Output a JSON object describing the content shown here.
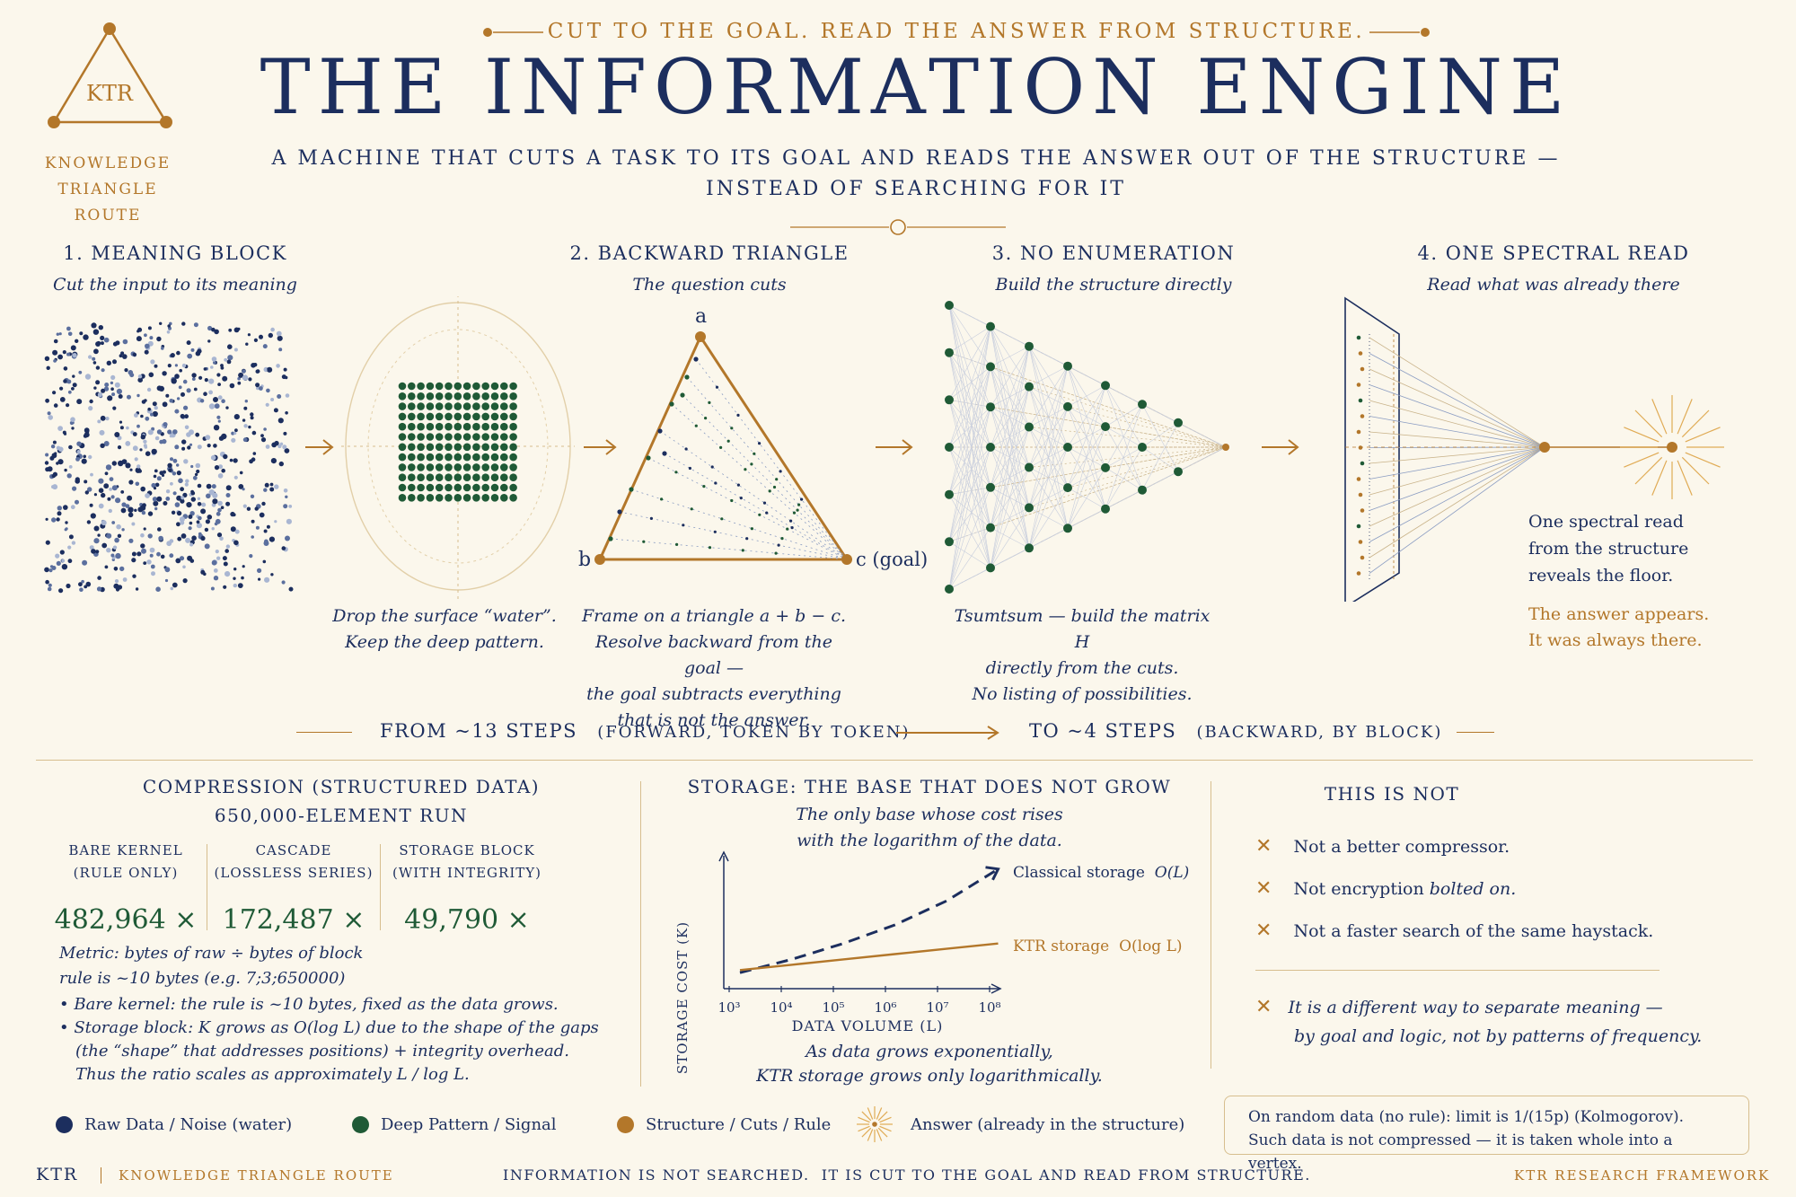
{
  "logo": {
    "text": "KTR",
    "lines": [
      "KNOWLEDGE",
      "TRIANGLE",
      "ROUTE"
    ]
  },
  "header": {
    "tagline": "CUT TO THE GOAL. READ THE ANSWER FROM STRUCTURE.",
    "title": "THE INFORMATION ENGINE",
    "subtitle_line1": "A MACHINE THAT CUTS A TASK TO ITS GOAL AND READS THE ANSWER OUT OF THE STRUCTURE —",
    "subtitle_line2": "INSTEAD OF SEARCHING FOR IT"
  },
  "steps": [
    {
      "title": "1. MEANING BLOCK",
      "subtitle": "Cut the input to its meaning",
      "caption": [
        "Drop the surface “water”.",
        "Keep the deep pattern."
      ]
    },
    {
      "title": "2. BACKWARD TRIANGLE",
      "subtitle": "The question cuts",
      "caption": [
        "Frame on a triangle a + b − c.",
        "Resolve backward from the goal —",
        "the goal subtracts everything",
        "that is not the answer."
      ],
      "labels": {
        "a": "a",
        "b": "b",
        "c": "c (goal)"
      }
    },
    {
      "title": "3. NO ENUMERATION",
      "subtitle": "Build the structure directly",
      "caption": [
        "Tsumtsum — build the matrix H",
        "directly from the cuts.",
        "No listing of possibilities."
      ]
    },
    {
      "title": "4. ONE SPECTRAL READ",
      "subtitle": "Read what was already there",
      "caption": [
        "One spectral read",
        "from the structure",
        "reveals the floor."
      ],
      "answer": [
        "The answer appears.",
        "It was always there."
      ]
    }
  ],
  "steps_bar": {
    "from_main": "FROM ~13 STEPS",
    "from_sub": "(FORWARD, TOKEN BY TOKEN)",
    "to_main": "TO ~4 STEPS",
    "to_sub": "(BACKWARD, BY BLOCK)"
  },
  "compression": {
    "title_line1": "COMPRESSION (STRUCTURED DATA)",
    "title_line2": "650,000-ELEMENT RUN",
    "columns": [
      {
        "label1": "BARE KERNEL",
        "label2": "(RULE ONLY)",
        "value": "482,964 ×"
      },
      {
        "label1": "CASCADE",
        "label2": "(LOSSLESS SERIES)",
        "value": "172,487 ×"
      },
      {
        "label1": "STORAGE BLOCK",
        "label2": "(WITH INTEGRITY)",
        "value": "49,790 ×"
      }
    ],
    "metric_line1": "Metric: bytes of raw  ÷  bytes of block",
    "metric_line2": "rule is ~10 bytes (e.g. 7;3;650000)",
    "bullet1": "Bare kernel: the rule is ~10 bytes, fixed as the data grows.",
    "bullet2_line1": "Storage block: K grows as O(log L) due to the shape of the gaps",
    "bullet2_line2": "(the “shape” that addresses positions) + integrity overhead.",
    "bullet2_line3": "Thus the ratio scales as approximately L / log L."
  },
  "storage": {
    "title": "STORAGE: THE BASE THAT DOES NOT GROW",
    "subtitle_line1": "The only base whose cost rises",
    "subtitle_line2": "with the logarithm of the data.",
    "footer_line1": "As data grows exponentially,",
    "footer_line2": "KTR storage grows only logarithmically."
  },
  "chart_data": {
    "type": "line",
    "xlabel": "DATA VOLUME (L)",
    "ylabel": "STORAGE COST (K)",
    "x_ticks": [
      "10³",
      "10⁴",
      "10⁵",
      "10⁶",
      "10⁷",
      "10⁸"
    ],
    "x_scale": "log",
    "series": [
      {
        "name": "Classical storage",
        "label_suffix": "O(L)",
        "style": "dashed",
        "color": "#1c2e5e",
        "x": [
          "10³",
          "10⁴",
          "10⁵",
          "10⁶",
          "10⁷",
          "10⁸"
        ],
        "values": [
          0.12,
          0.22,
          0.34,
          0.48,
          0.66,
          0.9
        ]
      },
      {
        "name": "KTR storage",
        "label_suffix": "O(log L)",
        "style": "solid",
        "color": "#b3772a",
        "x": [
          "10³",
          "10⁴",
          "10⁵",
          "10⁶",
          "10⁷",
          "10⁸"
        ],
        "values": [
          0.14,
          0.18,
          0.22,
          0.26,
          0.3,
          0.34
        ]
      }
    ],
    "ylim": [
      0,
      1
    ],
    "grid": false
  },
  "not_list": {
    "title": "THIS IS NOT",
    "items": [
      {
        "text": "Not a better compressor.",
        "em": ""
      },
      {
        "text": "Not encryption ",
        "em": "bolted on."
      },
      {
        "text": "Not a faster search of the same haystack.",
        "em": ""
      }
    ],
    "final_line1": "It is a different way to separate meaning —",
    "final_line2": "by goal and logic, not by patterns of frequency."
  },
  "note": {
    "line1": "On random data (no rule): limit is 1/(15p) (Kolmogorov).",
    "line2": "Such data is not compressed — it is taken whole into a vertex."
  },
  "legend": [
    {
      "label": "Raw Data / Noise (water)",
      "color": "#1c2e5e"
    },
    {
      "label": "Deep Pattern / Signal",
      "color": "#1f5a36"
    },
    {
      "label": "Structure / Cuts / Rule",
      "color": "#b3772a"
    },
    {
      "label": "Answer (already in the structure)",
      "color": "#b3772a"
    }
  ],
  "footer": {
    "left_logo": "KTR",
    "left_text": "KNOWLEDGE TRIANGLE ROUTE",
    "center": "INFORMATION IS NOT SEARCHED.  IT IS CUT TO THE GOAL AND READ FROM STRUCTURE.",
    "right": "KTR RESEARCH FRAMEWORK"
  },
  "colors": {
    "navy": "#1c2e5e",
    "green": "#1f5a36",
    "gold": "#b3772a",
    "background": "#fbf7ec"
  }
}
